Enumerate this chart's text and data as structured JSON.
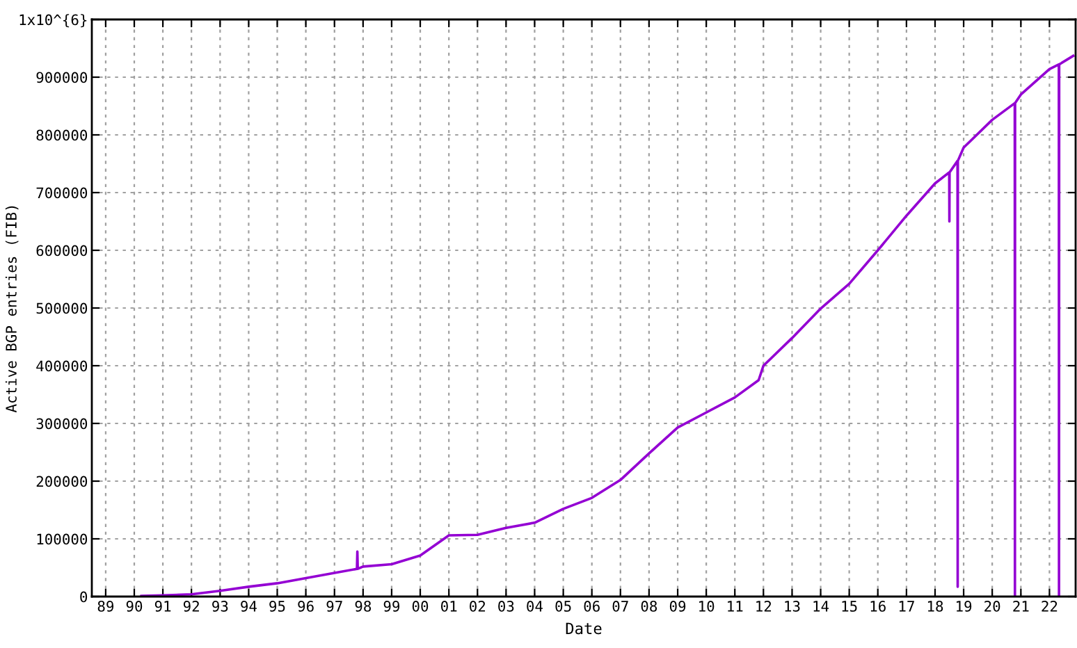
{
  "chart_data": {
    "type": "line",
    "xlabel": "Date",
    "ylabel": "Active BGP entries (FIB)",
    "x": [
      "1990-04-01",
      "1991-01-01",
      "1992-01-01",
      "1993-01-01",
      "1994-01-01",
      "1995-01-01",
      "1996-01-01",
      "1997-01-01",
      "1997-10-15",
      "1997-10-20",
      "1997-10-25",
      "1998-01-01",
      "1999-01-01",
      "2000-01-01",
      "2001-01-01",
      "2002-01-01",
      "2003-01-01",
      "2004-01-01",
      "2005-01-01",
      "2006-01-01",
      "2007-01-01",
      "2008-01-01",
      "2009-01-01",
      "2010-01-01",
      "2011-01-01",
      "2011-11-01",
      "2012-01-01",
      "2013-01-01",
      "2014-01-01",
      "2015-01-01",
      "2016-01-01",
      "2017-01-01",
      "2018-01-01",
      "2018-07-01",
      "2018-07-03",
      "2018-07-05",
      "2018-10-15",
      "2018-10-17",
      "2018-10-19",
      "2019-01-01",
      "2020-01-01",
      "2020-10-15",
      "2020-10-17",
      "2020-10-19",
      "2021-01-01",
      "2022-01-01",
      "2022-05-01",
      "2022-05-03",
      "2022-05-05",
      "2022-11-01"
    ],
    "series": [
      {
        "color": "#9400d3",
        "values": [
          1000,
          2000,
          4000,
          10000,
          17000,
          23000,
          32000,
          41000,
          48000,
          78000,
          48000,
          52000,
          56000,
          71000,
          106000,
          107000,
          119000,
          128000,
          152000,
          171000,
          202000,
          248000,
          293000,
          319000,
          345000,
          375000,
          400000,
          448000,
          499000,
          542000,
          600000,
          660000,
          716000,
          735000,
          650000,
          735000,
          755000,
          17000,
          755000,
          778000,
          826000,
          855000,
          0,
          855000,
          870000,
          914000,
          922000,
          0,
          922000,
          937000
        ]
      }
    ],
    "xlim": [
      "1988-07-08",
      "2022-12-01"
    ],
    "xticks": [
      {
        "value": "1989-01-01",
        "label": "89"
      },
      {
        "value": "1990-01-01",
        "label": "90"
      },
      {
        "value": "1991-01-01",
        "label": "91"
      },
      {
        "value": "1992-01-01",
        "label": "92"
      },
      {
        "value": "1993-01-01",
        "label": "93"
      },
      {
        "value": "1994-01-01",
        "label": "94"
      },
      {
        "value": "1995-01-01",
        "label": "95"
      },
      {
        "value": "1996-01-01",
        "label": "96"
      },
      {
        "value": "1997-01-01",
        "label": "97"
      },
      {
        "value": "1998-01-01",
        "label": "98"
      },
      {
        "value": "1999-01-01",
        "label": "99"
      },
      {
        "value": "2000-01-01",
        "label": "00"
      },
      {
        "value": "2001-01-01",
        "label": "01"
      },
      {
        "value": "2002-01-01",
        "label": "02"
      },
      {
        "value": "2003-01-01",
        "label": "03"
      },
      {
        "value": "2004-01-01",
        "label": "04"
      },
      {
        "value": "2005-01-01",
        "label": "05"
      },
      {
        "value": "2006-01-01",
        "label": "06"
      },
      {
        "value": "2007-01-01",
        "label": "07"
      },
      {
        "value": "2008-01-01",
        "label": "08"
      },
      {
        "value": "2009-01-01",
        "label": "09"
      },
      {
        "value": "2010-01-01",
        "label": "10"
      },
      {
        "value": "2011-01-01",
        "label": "11"
      },
      {
        "value": "2012-01-01",
        "label": "12"
      },
      {
        "value": "2013-01-01",
        "label": "13"
      },
      {
        "value": "2014-01-01",
        "label": "14"
      },
      {
        "value": "2015-01-01",
        "label": "15"
      },
      {
        "value": "2016-01-01",
        "label": "16"
      },
      {
        "value": "2017-01-01",
        "label": "17"
      },
      {
        "value": "2018-01-01",
        "label": "18"
      },
      {
        "value": "2019-01-01",
        "label": "19"
      },
      {
        "value": "2020-01-01",
        "label": "20"
      },
      {
        "value": "2021-01-01",
        "label": "21"
      },
      {
        "value": "2022-01-01",
        "label": "22"
      }
    ],
    "ylim": [
      0,
      1000000
    ],
    "yticks": [
      0,
      100000,
      200000,
      300000,
      400000,
      500000,
      600000,
      700000,
      800000,
      900000,
      {
        "value": 1000000,
        "label": "1x10^{6}"
      }
    ],
    "grid": true,
    "marker": "none",
    "line_style": "solid",
    "legend": false
  }
}
